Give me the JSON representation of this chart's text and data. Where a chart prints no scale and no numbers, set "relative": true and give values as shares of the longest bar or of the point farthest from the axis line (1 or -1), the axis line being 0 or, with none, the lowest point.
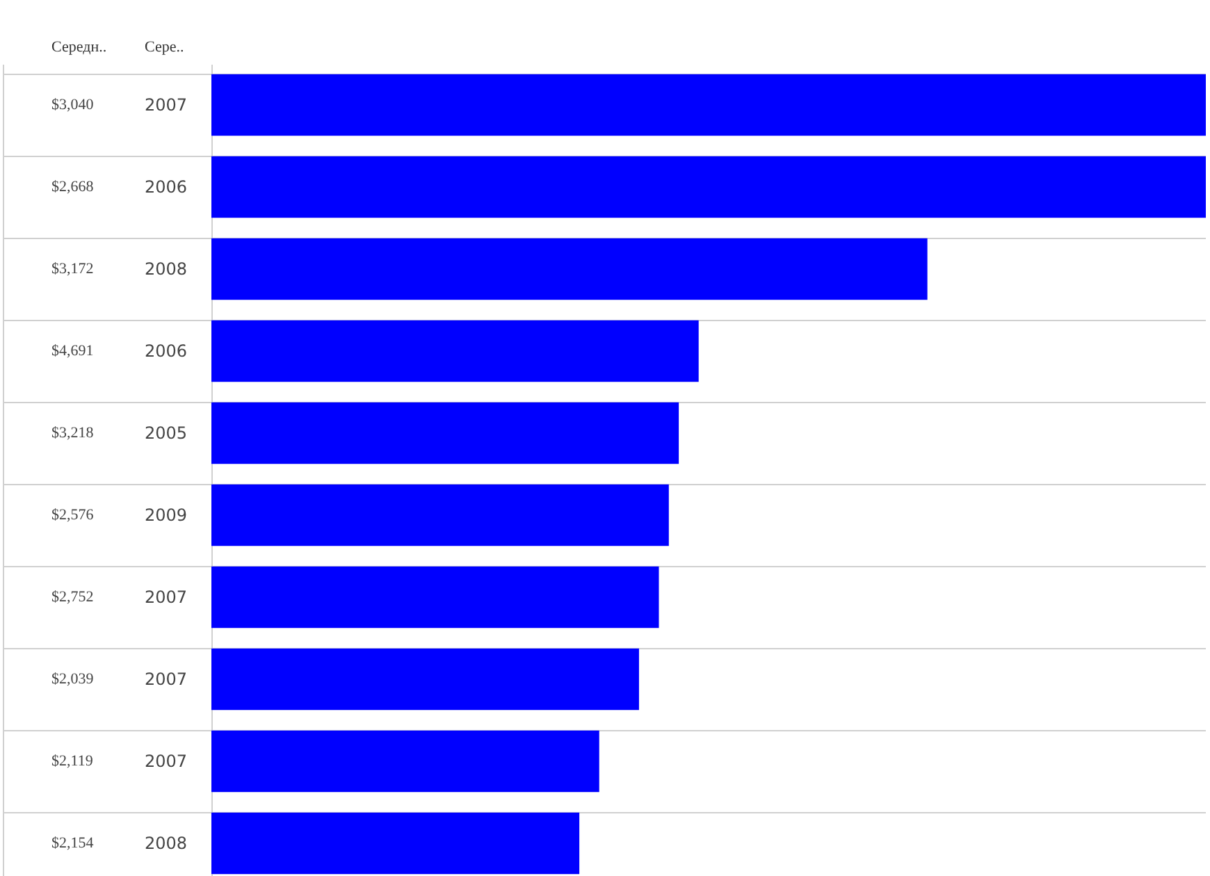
{
  "chart_data": {
    "type": "bar",
    "orientation": "horizontal",
    "relative": true,
    "grid": "y",
    "categories": [
      null,
      null,
      null,
      null,
      null,
      null,
      null,
      null,
      null,
      null
    ],
    "values": [
      1,
      1,
      0.72,
      0.49,
      0.47,
      0.46,
      0.45,
      0.43,
      0.39,
      0.37
    ],
    "color": "#0000ff",
    "annotations": [
      "Середн..",
      "Сере..",
      "$3,040",
      "2007",
      "$2,668",
      "2006",
      "$3,172",
      "2008",
      "$4,691",
      "2006",
      "$3,218",
      "2005",
      "$2,576",
      "2009",
      "$2,752",
      "2007",
      "$2,039",
      "2007",
      "$2,119",
      "2007",
      "$2,154",
      "2008"
    ]
  }
}
